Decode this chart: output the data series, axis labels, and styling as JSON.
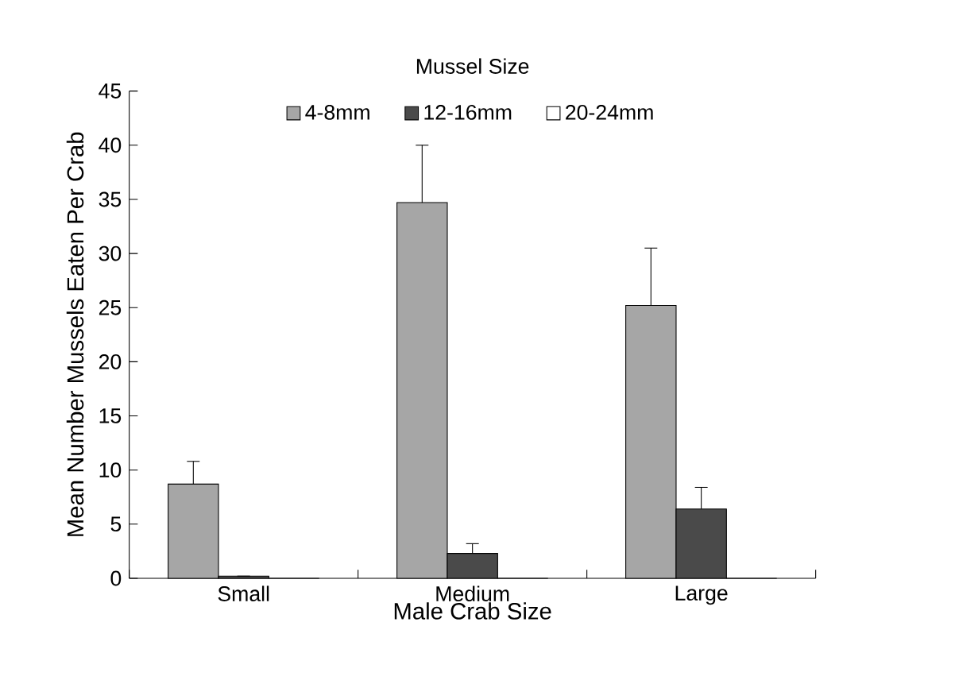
{
  "chart_data": {
    "type": "bar",
    "xlabel": "Male Crab Size",
    "ylabel": "Mean Number Mussels Eaten Per Crab",
    "legend_title": "Mussel Size",
    "categories": [
      "Small",
      "Medium",
      "Large"
    ],
    "series": [
      {
        "name": "4-8mm",
        "color": "#a6a6a6",
        "values": [
          8.7,
          34.7,
          25.2
        ],
        "errors": [
          2.1,
          5.3,
          5.3
        ]
      },
      {
        "name": "12-16mm",
        "color": "#4a4a4a",
        "values": [
          0.2,
          2.3,
          6.4
        ],
        "errors": [
          null,
          0.9,
          2.0
        ]
      },
      {
        "name": "20-24mm",
        "color": "#ffffff",
        "values": [
          0,
          0,
          0
        ]
      }
    ],
    "ylim": [
      0,
      45
    ],
    "yticks": [
      0,
      5,
      10,
      15,
      20,
      25,
      30,
      35,
      40,
      45
    ],
    "grid": false,
    "legend": "top"
  }
}
